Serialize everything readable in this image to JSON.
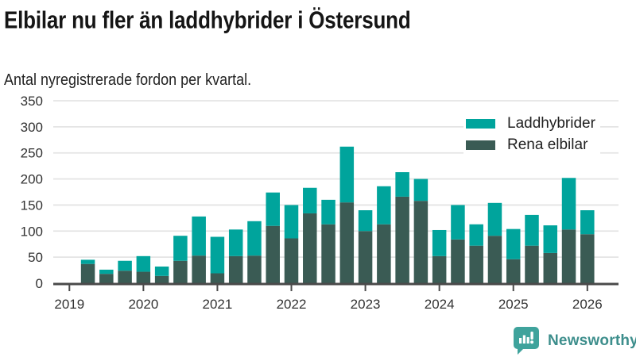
{
  "header": {
    "title": "Elbilar nu fler än laddhybrider i Östersund",
    "subtitle": "Antal nyregistrerade fordon per kvartal."
  },
  "legend": {
    "items": [
      {
        "label": "Laddhybrider",
        "color": "#00a49c"
      },
      {
        "label": "Rena elbilar",
        "color": "#3a5b54"
      }
    ]
  },
  "footer": {
    "brand": "Newsworthy"
  },
  "colors": {
    "teal": "#00a49c",
    "dark_teal": "#3a5b54",
    "axis": "#4a4a4a",
    "grid": "#e4e4e4",
    "tick_text": "#333333",
    "brand_logo": "#3fa39c",
    "brand_text": "#3d8e8c"
  },
  "chart_data": {
    "type": "bar",
    "stacked": true,
    "title": "Elbilar nu fler än laddhybrider i Östersund",
    "subtitle": "Antal nyregistrerade fordon per kvartal.",
    "xlabel": "",
    "ylabel": "",
    "categories": [
      "2019-Q2",
      "2019-Q3",
      "2019-Q4",
      "2020-Q1",
      "2020-Q2",
      "2020-Q3",
      "2020-Q4",
      "2021-Q1",
      "2021-Q2",
      "2021-Q3",
      "2021-Q4",
      "2022-Q1",
      "2022-Q2",
      "2022-Q3",
      "2022-Q4",
      "2023-Q1",
      "2023-Q2",
      "2023-Q3",
      "2023-Q4",
      "2024-Q1",
      "2024-Q2",
      "2024-Q3",
      "2024-Q4",
      "2025-Q1",
      "2025-Q2",
      "2025-Q3",
      "2025-Q4",
      "2026-Q1"
    ],
    "series": [
      {
        "name": "Laddhybrider",
        "color": "#00a49c",
        "values": [
          8,
          8,
          19,
          30,
          18,
          48,
          75,
          70,
          51,
          66,
          64,
          64,
          49,
          47,
          107,
          40,
          73,
          47,
          42,
          50,
          66,
          41,
          63,
          58,
          59,
          53,
          99,
          46
        ]
      },
      {
        "name": "Rena elbilar",
        "color": "#3a5b54",
        "values": [
          37,
          18,
          24,
          22,
          14,
          43,
          53,
          19,
          52,
          53,
          110,
          86,
          134,
          113,
          155,
          100,
          113,
          166,
          158,
          52,
          84,
          72,
          91,
          46,
          72,
          58,
          103,
          94
        ]
      }
    ],
    "stack_order_bottom_to_top": [
      "Rena elbilar",
      "Laddhybrider"
    ],
    "x_tick_labels": [
      "2019",
      "2020",
      "2021",
      "2022",
      "2023",
      "2024",
      "2025",
      "2026"
    ],
    "y_ticks": [
      0,
      50,
      100,
      150,
      200,
      250,
      300,
      350
    ],
    "ylim": [
      0,
      350
    ],
    "grid": true,
    "legend_position": "upper right"
  }
}
